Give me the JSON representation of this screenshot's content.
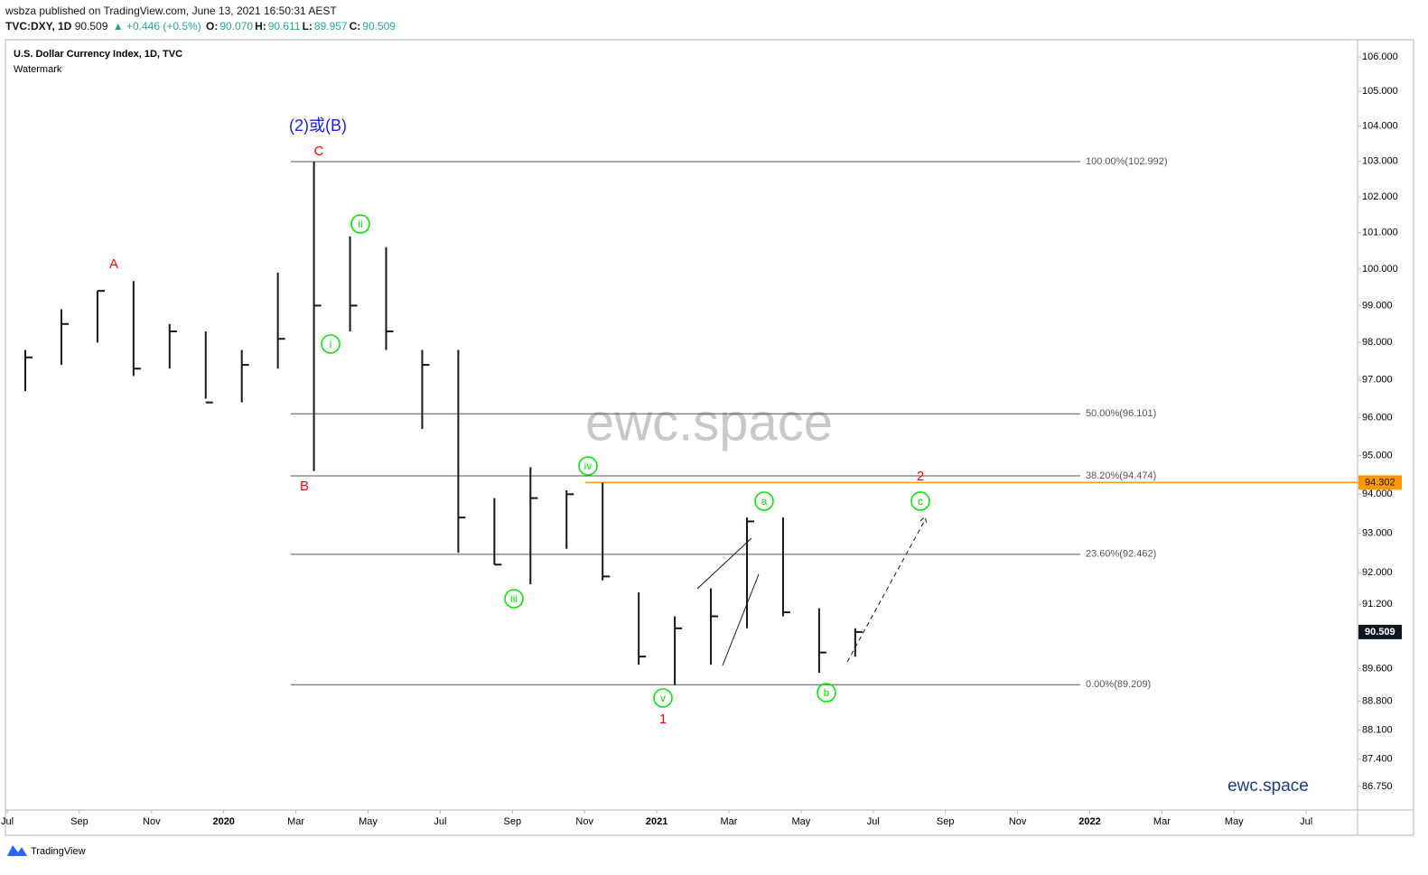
{
  "header": {
    "publisher": "wsbza published on TradingView.com, June 13, 2021 16:50:31 AEST",
    "symbol": "TVC:DXY, 1D",
    "last": "90.509",
    "change": "▲ +0.446 (+0.5%)",
    "ohlc": [
      {
        "key": "O:",
        "value": "90.070"
      },
      {
        "key": "H:",
        "value": "90.611"
      },
      {
        "key": "L:",
        "value": "89.957"
      },
      {
        "key": "C:",
        "value": "90.509"
      }
    ]
  },
  "chart_data": {
    "type": "ohlc",
    "title": "U.S. Dollar Currency Index, 1D, TVC",
    "subtitle": "Watermark",
    "color": "#131722",
    "log": true,
    "x": [
      "2019-07",
      "2019-08",
      "2019-09",
      "2019-10",
      "2019-11",
      "2019-12",
      "2020-01",
      "2020-02",
      "2020-03",
      "2020-04",
      "2020-05",
      "2020-06",
      "2020-07",
      "2020-08",
      "2020-09",
      "2020-10",
      "2020-11",
      "2020-12",
      "2021-01",
      "2021-02",
      "2021-03",
      "2021-04",
      "2021-05",
      "2021-06"
    ],
    "high": [
      97.8,
      98.9,
      99.4,
      99.67,
      98.5,
      98.3,
      97.8,
      99.9,
      102.99,
      100.9,
      100.6,
      97.8,
      97.8,
      93.9,
      94.7,
      94.1,
      94.3,
      91.5,
      90.9,
      91.6,
      93.4,
      93.4,
      91.1,
      90.6
    ],
    "low": [
      96.7,
      97.4,
      98.0,
      97.1,
      97.3,
      96.5,
      96.4,
      97.3,
      94.6,
      98.3,
      97.8,
      95.7,
      92.5,
      92.2,
      91.7,
      92.6,
      91.8,
      89.7,
      89.2,
      89.7,
      90.6,
      90.9,
      89.5,
      89.9
    ],
    "close": [
      97.6,
      98.5,
      99.4,
      97.3,
      98.3,
      96.4,
      97.4,
      98.1,
      99.0,
      99.0,
      98.3,
      97.4,
      93.4,
      92.2,
      93.9,
      94.0,
      91.9,
      89.9,
      90.6,
      90.9,
      93.3,
      91.0,
      90.0,
      90.509
    ],
    "ylim": [
      86.19,
      106.5
    ],
    "yticks": [
      {
        "value": 106,
        "label": "106.000"
      },
      {
        "value": 105,
        "label": "105.000"
      },
      {
        "value": 104,
        "label": "104.000"
      },
      {
        "value": 103,
        "label": "103.000"
      },
      {
        "value": 102,
        "label": "102.000"
      },
      {
        "value": 101,
        "label": "101.000"
      },
      {
        "value": 100,
        "label": "100.000"
      },
      {
        "value": 99,
        "label": "99.000"
      },
      {
        "value": 98,
        "label": "98.000"
      },
      {
        "value": 97,
        "label": "97.000"
      },
      {
        "value": 96,
        "label": "96.000"
      },
      {
        "value": 95,
        "label": "95.000"
      },
      {
        "value": 94,
        "label": "94.000"
      },
      {
        "value": 93,
        "label": "93.000"
      },
      {
        "value": 92,
        "label": "92.000"
      },
      {
        "value": 91.2,
        "label": "91.200"
      },
      {
        "value": 89.6,
        "label": "89.600"
      },
      {
        "value": 88.8,
        "label": "88.800"
      },
      {
        "value": 88.1,
        "label": "88.100"
      },
      {
        "value": 87.4,
        "label": "87.400"
      },
      {
        "value": 86.75,
        "label": "86.750"
      }
    ],
    "xticks": [
      {
        "value": "2019-07",
        "label": "Jul"
      },
      {
        "value": "2019-09",
        "label": "Sep"
      },
      {
        "value": "2019-11",
        "label": "Nov"
      },
      {
        "value": "2020-01",
        "label": "2020"
      },
      {
        "value": "2020-03",
        "label": "Mar"
      },
      {
        "value": "2020-05",
        "label": "May"
      },
      {
        "value": "2020-07",
        "label": "Jul"
      },
      {
        "value": "2020-09",
        "label": "Sep"
      },
      {
        "value": "2020-11",
        "label": "Nov"
      },
      {
        "value": "2021-01",
        "label": "2021"
      },
      {
        "value": "2021-03",
        "label": "Mar"
      },
      {
        "value": "2021-05",
        "label": "May"
      },
      {
        "value": "2021-07",
        "label": "Jul"
      },
      {
        "value": "2021-09",
        "label": "Sep"
      },
      {
        "value": "2021-11",
        "label": "Nov"
      },
      {
        "value": "2022-01",
        "label": "2022"
      },
      {
        "value": "2022-03",
        "label": "Mar"
      },
      {
        "value": "2022-05",
        "label": "May"
      },
      {
        "value": "2022-07",
        "label": "Jul"
      }
    ],
    "levels": [
      {
        "value": 102.992,
        "label": "100.00%(102.992)"
      },
      {
        "value": 96.101,
        "label": "50.00%(96.101)"
      },
      {
        "value": 94.474,
        "label": "38.20%(94.474)"
      },
      {
        "value": 92.462,
        "label": "23.60%(92.462)"
      },
      {
        "value": 89.209,
        "label": "0.00%(89.209)"
      }
    ],
    "hline": {
      "value": 94.302,
      "label": "94.302",
      "color": "#ff9800"
    },
    "last": {
      "value": 90.509,
      "label": "90.509"
    },
    "waves": [
      {
        "text": "(2)或(B)",
        "color": "#1a1aff",
        "circle": false
      },
      {
        "text": "C",
        "color": "#ff0000",
        "circle": false
      },
      {
        "text": "A",
        "color": "#ff0000",
        "circle": false
      },
      {
        "text": "B",
        "color": "#ff0000",
        "circle": false
      },
      {
        "text": "i",
        "color": "#00e600",
        "circle": true
      },
      {
        "text": "ii",
        "color": "#00e600",
        "circle": true
      },
      {
        "text": "iii",
        "color": "#00e600",
        "circle": true
      },
      {
        "text": "iv",
        "color": "#00e600",
        "circle": true
      },
      {
        "text": "v",
        "color": "#00e600",
        "circle": true
      },
      {
        "text": "1",
        "color": "#ff0000",
        "circle": false
      },
      {
        "text": "a",
        "color": "#00e600",
        "circle": true
      },
      {
        "text": "b",
        "color": "#00e600",
        "circle": true
      },
      {
        "text": "c",
        "color": "#00e600",
        "circle": true
      },
      {
        "text": "2",
        "color": "#ff0000",
        "circle": false
      }
    ],
    "watermark": "ewc.space",
    "brand": "ewc.space"
  },
  "footer": "TradingView"
}
